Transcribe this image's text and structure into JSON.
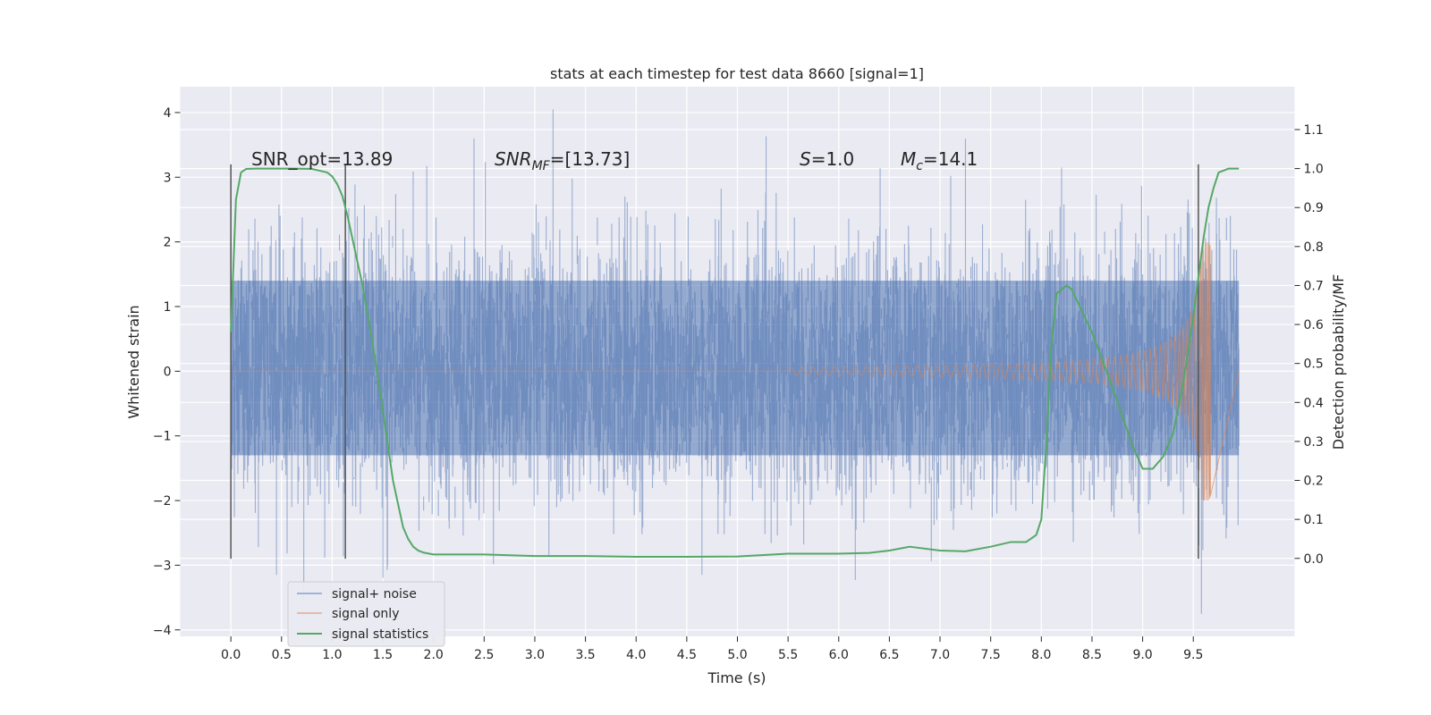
{
  "chart_data": {
    "type": "line",
    "title": "stats at each timestep for test data 8660 [signal=1]",
    "xlabel": "Time (s)",
    "ylabel": "Whitened strain",
    "ylabel_right": "Detection probability/MF",
    "xlim": [
      -0.5,
      10.5
    ],
    "ylim": [
      -4.1,
      4.4
    ],
    "ylim_right": [
      -0.2,
      1.21
    ],
    "x_ticks": [
      0.0,
      0.5,
      1.0,
      1.5,
      2.0,
      2.5,
      3.0,
      3.5,
      4.0,
      4.5,
      5.0,
      5.5,
      6.0,
      6.5,
      7.0,
      7.5,
      8.0,
      8.5,
      9.0,
      9.5
    ],
    "x_tick_labels": [
      "0.0",
      "0.5",
      "1.0",
      "1.5",
      "2.0",
      "2.5",
      "3.0",
      "3.5",
      "4.0",
      "4.5",
      "5.0",
      "5.5",
      "6.0",
      "6.5",
      "7.0",
      "7.5",
      "8.0",
      "8.5",
      "9.0",
      "9.5"
    ],
    "y_ticks": [
      4,
      3,
      2,
      1,
      0,
      -1,
      -2,
      -3,
      -4
    ],
    "y_tick_labels": [
      "4",
      "3",
      "2",
      "1",
      "0",
      "−1",
      "−2",
      "−3",
      "−4"
    ],
    "y_right_ticks": [
      1.1,
      1.0,
      0.9,
      0.8,
      0.7,
      0.6,
      0.5,
      0.4,
      0.3,
      0.2,
      0.1,
      0.0
    ],
    "y_right_tick_labels": [
      "1.1",
      "1.0",
      "0.9",
      "0.8",
      "0.7",
      "0.6",
      "0.5",
      "0.4",
      "0.3",
      "0.2",
      "0.1",
      "0.0"
    ],
    "grid": true,
    "legend_position": "bottom-left",
    "annotations": {
      "snr_opt": "SNR_opt=13.89",
      "snr_mf_main": "SNR",
      "snr_mf_sub": "MF",
      "snr_mf_value": "=[13.73]",
      "s_var": "S",
      "s_value": "=1.0",
      "mc_var": "M",
      "mc_sub": "c",
      "mc_value": "=14.1"
    },
    "series": [
      {
        "name": "signal+ noise",
        "color": "#4c72b0",
        "axis": "left",
        "x_range": [
          0.0,
          9.95
        ],
        "noise_band": [
          -1.3,
          1.4
        ],
        "notable_peaks": [
          [
            0.45,
            -3.15
          ],
          [
            2.4,
            3.6
          ],
          [
            3.18,
            4.05
          ],
          [
            4.65,
            -3.15
          ],
          [
            8.2,
            3.15
          ],
          [
            9.58,
            -3.75
          ]
        ]
      },
      {
        "name": "signal only",
        "color": "#dd8452",
        "axis": "left",
        "x_range": [
          0.0,
          9.95
        ],
        "chirp_start": 5.5,
        "chirp_end": 9.67,
        "chirp_max_amplitude": 2.0
      },
      {
        "name": "signal statistics",
        "color": "#55a868",
        "axis": "right",
        "x": [
          0.0,
          0.05,
          0.1,
          0.15,
          0.25,
          0.4,
          0.6,
          0.8,
          0.95,
          1.0,
          1.05,
          1.1,
          1.15,
          1.2,
          1.3,
          1.4,
          1.5,
          1.6,
          1.7,
          1.75,
          1.8,
          1.85,
          1.9,
          2.0,
          2.5,
          3.0,
          3.5,
          4.0,
          4.5,
          5.0,
          5.5,
          6.0,
          6.3,
          6.5,
          6.7,
          7.0,
          7.25,
          7.5,
          7.7,
          7.85,
          7.95,
          8.0,
          8.05,
          8.1,
          8.15,
          8.2,
          8.25,
          8.3,
          8.5,
          8.7,
          8.9,
          9.0,
          9.1,
          9.2,
          9.3,
          9.4,
          9.5,
          9.6,
          9.65,
          9.7,
          9.75,
          9.8,
          9.85,
          9.9,
          9.95
        ],
        "values": [
          0.58,
          0.92,
          0.99,
          0.999,
          1.0,
          1.0,
          1.0,
          0.999,
          0.99,
          0.98,
          0.96,
          0.93,
          0.88,
          0.82,
          0.7,
          0.55,
          0.38,
          0.2,
          0.08,
          0.05,
          0.03,
          0.02,
          0.015,
          0.01,
          0.01,
          0.006,
          0.006,
          0.004,
          0.004,
          0.005,
          0.012,
          0.012,
          0.014,
          0.02,
          0.03,
          0.02,
          0.018,
          0.03,
          0.042,
          0.042,
          0.06,
          0.1,
          0.3,
          0.55,
          0.68,
          0.69,
          0.7,
          0.69,
          0.58,
          0.44,
          0.29,
          0.23,
          0.23,
          0.26,
          0.32,
          0.45,
          0.62,
          0.82,
          0.9,
          0.95,
          0.99,
          0.995,
          1.0,
          1.0,
          1.0
        ]
      }
    ],
    "vertical_markers": [
      0.0,
      1.13,
      9.55
    ],
    "marker_color": "#555555",
    "background_color": "#eaeaf2"
  }
}
